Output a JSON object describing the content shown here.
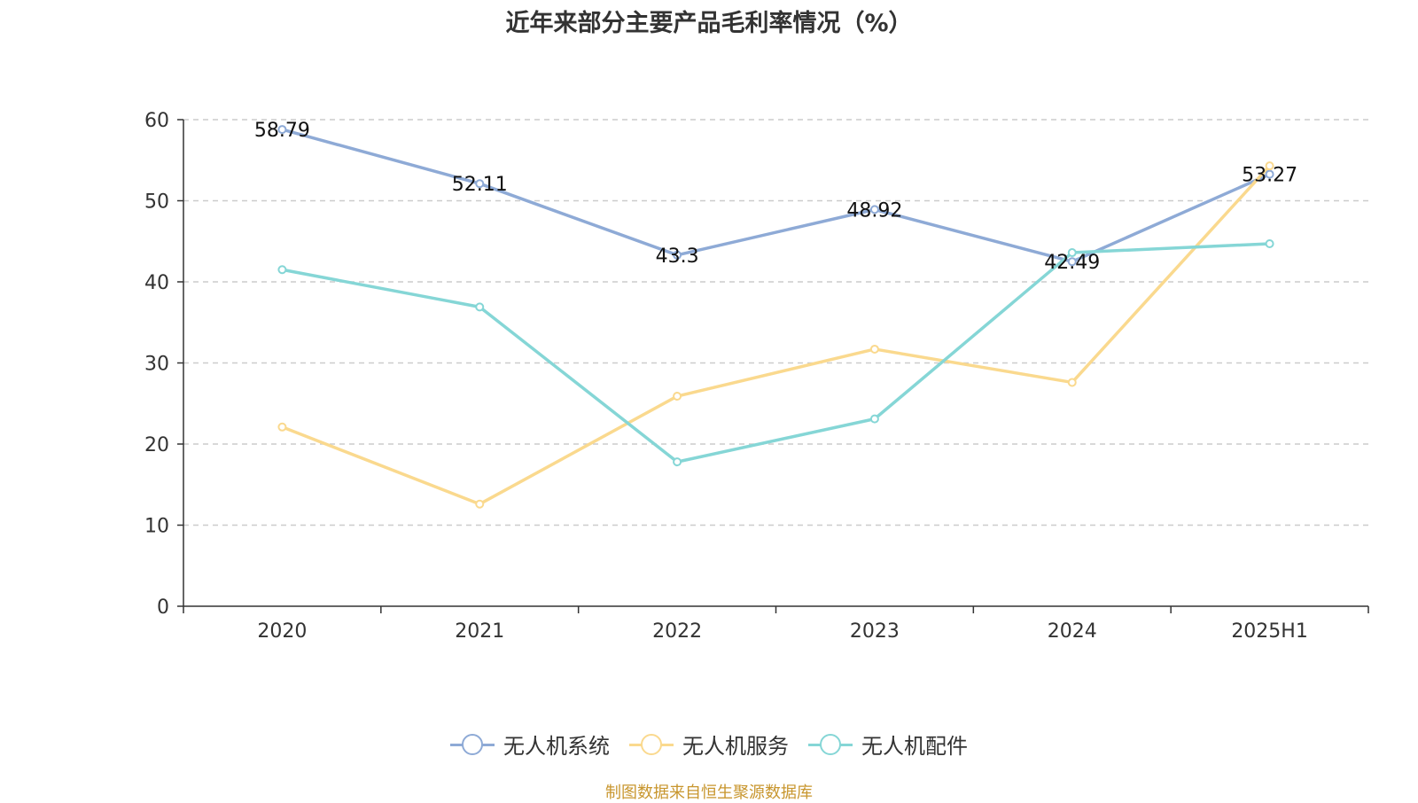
{
  "title": "近年来部分主要产品毛利率情况（%）",
  "source": "制图数据来自恒生聚源数据库",
  "chart_data": {
    "type": "line",
    "categories": [
      "2020",
      "2021",
      "2022",
      "2023",
      "2024",
      "2025H1"
    ],
    "ylim": [
      0,
      60
    ],
    "yticks": [
      0,
      10,
      20,
      30,
      40,
      50,
      60
    ],
    "grid": true,
    "legend_position": "bottom",
    "series": [
      {
        "name": "无人机系统",
        "color": "#8eaad6",
        "values": [
          58.79,
          52.11,
          43.3,
          48.92,
          42.49,
          53.27
        ],
        "show_labels": true,
        "labels": [
          "58.79",
          "52.11",
          "43.3",
          "48.92",
          "42.49",
          "53.27"
        ]
      },
      {
        "name": "无人机服务",
        "color": "#fad98e",
        "values": [
          22.1,
          12.6,
          25.9,
          31.7,
          27.6,
          54.3
        ],
        "show_labels": false
      },
      {
        "name": "无人机配件",
        "color": "#85d6d6",
        "values": [
          41.5,
          36.9,
          17.8,
          23.1,
          43.6,
          44.7
        ],
        "show_labels": false
      }
    ]
  }
}
